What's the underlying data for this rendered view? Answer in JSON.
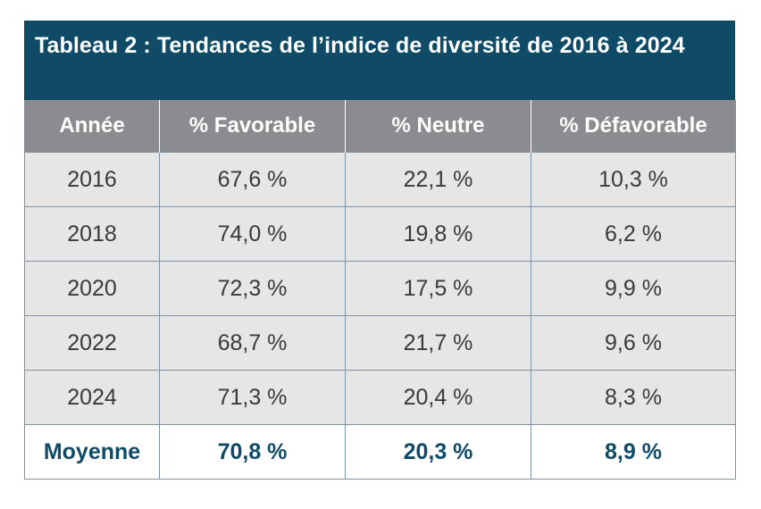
{
  "title": "Tableau 2 : Tendances de l’indice de diversité de 2016 à 2024",
  "headers": [
    "Année",
    "% Favorable",
    "% Neutre",
    "% Défavorable"
  ],
  "rows": [
    [
      "2016",
      "67,6 %",
      "22,1 %",
      "10,3 %"
    ],
    [
      "2018",
      "74,0 %",
      "19,8 %",
      "6,2 %"
    ],
    [
      "2020",
      "72,3 %",
      "17,5 %",
      "9,9 %"
    ],
    [
      "2022",
      "68,7 %",
      "21,7 %",
      "9,6 %"
    ],
    [
      "2024",
      "71,3 %",
      "20,4 %",
      "8,3 %"
    ]
  ],
  "average": [
    "Moyenne",
    "70,8 %",
    "20,3 %",
    "8,9 %"
  ],
  "colors": {
    "title_bg": "#0f4a66",
    "header_bg": "#8a8c8f",
    "cell_bg": "#e6e6e7",
    "average_text": "#0f4a66"
  }
}
